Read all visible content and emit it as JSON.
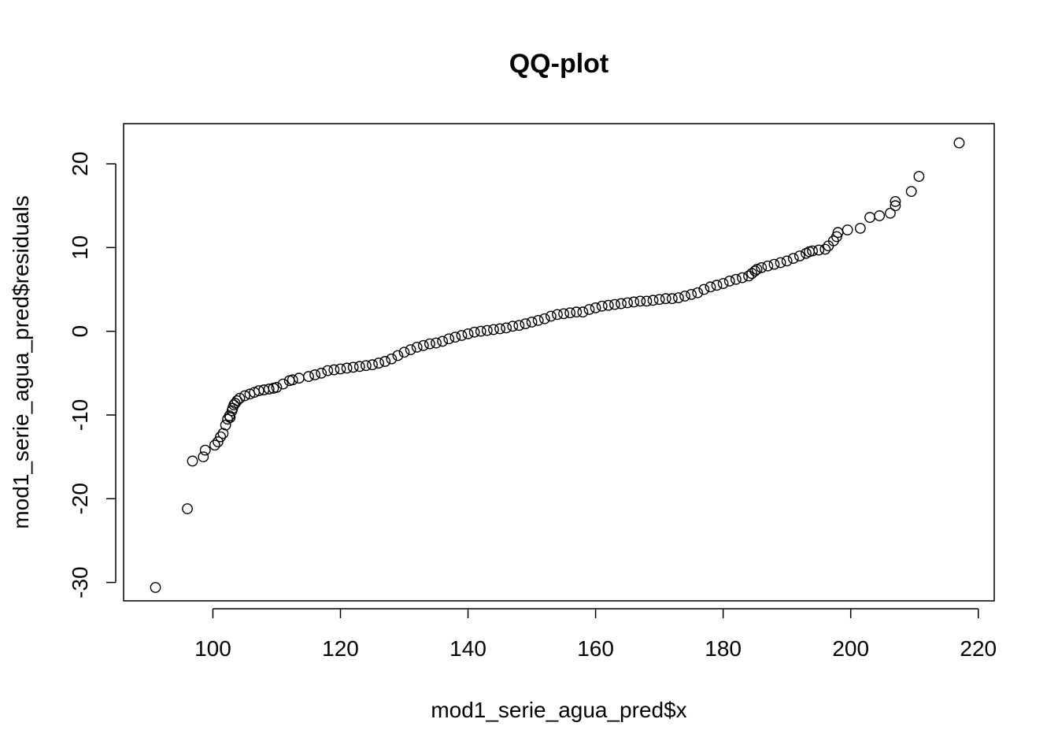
{
  "chart_data": {
    "type": "scatter",
    "title": "QQ-plot",
    "xlabel": "mod1_serie_agua_pred$x",
    "ylabel": "mod1_serie_agua_pred$residuals",
    "xlim": [
      86,
      222.5
    ],
    "ylim": [
      -32.2,
      24.8
    ],
    "x_ticks": [
      100,
      120,
      140,
      160,
      180,
      200,
      220
    ],
    "x_tick_labels": [
      "100",
      "120",
      "140",
      "160",
      "180",
      "200",
      "220"
    ],
    "y_ticks": [
      -30,
      -20,
      -10,
      0,
      10,
      20
    ],
    "y_tick_labels": [
      "-30",
      "-20",
      "-10",
      "0",
      "10",
      "20"
    ],
    "grid": false,
    "marker": "open-circle",
    "colors": {
      "marker": "#000000",
      "axis": "#000000",
      "background": "#ffffff"
    },
    "anchors": [
      [
        91,
        -30.6
      ],
      [
        96,
        -21.2
      ],
      [
        96.8,
        -15.5
      ],
      [
        98.5,
        -15.0
      ],
      [
        98.8,
        -14.2
      ],
      [
        100.3,
        -13.6
      ],
      [
        100.8,
        -13.2
      ],
      [
        101.2,
        -12.6
      ],
      [
        101.6,
        -12.2
      ],
      [
        102.0,
        -11.2
      ],
      [
        102.7,
        -10.3
      ],
      [
        103.0,
        -9.5
      ],
      [
        103.3,
        -8.8
      ],
      [
        103.8,
        -8.3
      ],
      [
        105,
        -7.7
      ],
      [
        108,
        -7.0
      ],
      [
        110,
        -6.7
      ],
      [
        112,
        -5.9
      ],
      [
        115,
        -5.4
      ],
      [
        118,
        -4.7
      ],
      [
        122,
        -4.3
      ],
      [
        126,
        -3.8
      ],
      [
        128,
        -3.3
      ],
      [
        130,
        -2.5
      ],
      [
        132,
        -1.9
      ],
      [
        136,
        -1.2
      ],
      [
        139,
        -0.5
      ],
      [
        142,
        0.0
      ],
      [
        146,
        0.4
      ],
      [
        149,
        0.9
      ],
      [
        152,
        1.5
      ],
      [
        154,
        2.0
      ],
      [
        158,
        2.3
      ],
      [
        161,
        3.0
      ],
      [
        165,
        3.4
      ],
      [
        169,
        3.7
      ],
      [
        173,
        4.0
      ],
      [
        176,
        4.6
      ],
      [
        178,
        5.3
      ],
      [
        181,
        6.0
      ],
      [
        184,
        6.6
      ],
      [
        185.3,
        7.4
      ],
      [
        188,
        8.0
      ],
      [
        191,
        8.7
      ],
      [
        193.5,
        9.5
      ],
      [
        196,
        9.8
      ],
      [
        197.3,
        10.8
      ],
      [
        198,
        11.8
      ],
      [
        199.5,
        12.1
      ],
      [
        201.5,
        12.3
      ],
      [
        203,
        13.6
      ],
      [
        204.5,
        13.8
      ],
      [
        206.2,
        14.1
      ],
      [
        207,
        15.0
      ],
      [
        207,
        15.5
      ],
      [
        209.5,
        16.7
      ],
      [
        210.7,
        18.5
      ],
      [
        217,
        22.5
      ]
    ],
    "extra_points": [
      [
        102.3,
        -10.5
      ],
      [
        102.6,
        -10.1
      ],
      [
        103.1,
        -9.2
      ],
      [
        103.5,
        -8.6
      ],
      [
        104.2,
        -8.0
      ],
      [
        105.8,
        -7.5
      ],
      [
        106.5,
        -7.3
      ],
      [
        107.2,
        -7.1
      ],
      [
        108.8,
        -6.9
      ],
      [
        109.5,
        -6.8
      ],
      [
        111,
        -6.3
      ],
      [
        112.5,
        -5.8
      ],
      [
        113.5,
        -5.6
      ],
      [
        116,
        -5.2
      ],
      [
        117,
        -5.0
      ],
      [
        119,
        -4.6
      ],
      [
        120,
        -4.5
      ],
      [
        121,
        -4.4
      ],
      [
        123,
        -4.2
      ],
      [
        124,
        -4.1
      ],
      [
        125,
        -4.0
      ],
      [
        127,
        -3.6
      ],
      [
        129,
        -2.9
      ],
      [
        131,
        -2.2
      ],
      [
        133,
        -1.7
      ],
      [
        134,
        -1.5
      ],
      [
        135,
        -1.4
      ],
      [
        137,
        -0.9
      ],
      [
        138,
        -0.7
      ],
      [
        140,
        -0.3
      ],
      [
        141,
        -0.1
      ],
      [
        143,
        0.1
      ],
      [
        144,
        0.2
      ],
      [
        145,
        0.3
      ],
      [
        147,
        0.6
      ],
      [
        148,
        0.7
      ],
      [
        150,
        1.1
      ],
      [
        151,
        1.3
      ],
      [
        153,
        1.8
      ],
      [
        155,
        2.1
      ],
      [
        156,
        2.2
      ],
      [
        157,
        2.3
      ],
      [
        159,
        2.6
      ],
      [
        160,
        2.8
      ],
      [
        162,
        3.1
      ],
      [
        163,
        3.2
      ],
      [
        164,
        3.3
      ],
      [
        166,
        3.5
      ],
      [
        167,
        3.6
      ],
      [
        168,
        3.6
      ],
      [
        170,
        3.8
      ],
      [
        171,
        3.9
      ],
      [
        172,
        3.9
      ],
      [
        174,
        4.2
      ],
      [
        175,
        4.4
      ],
      [
        177,
        5.0
      ],
      [
        179,
        5.5
      ],
      [
        180,
        5.7
      ],
      [
        182,
        6.2
      ],
      [
        183,
        6.4
      ],
      [
        184.5,
        6.9
      ],
      [
        185,
        7.2
      ],
      [
        186,
        7.6
      ],
      [
        187,
        7.8
      ],
      [
        189,
        8.2
      ],
      [
        190,
        8.4
      ],
      [
        192,
        9.0
      ],
      [
        193,
        9.3
      ],
      [
        194,
        9.6
      ],
      [
        195,
        9.7
      ],
      [
        196.5,
        10.2
      ],
      [
        197.8,
        11.3
      ]
    ]
  }
}
